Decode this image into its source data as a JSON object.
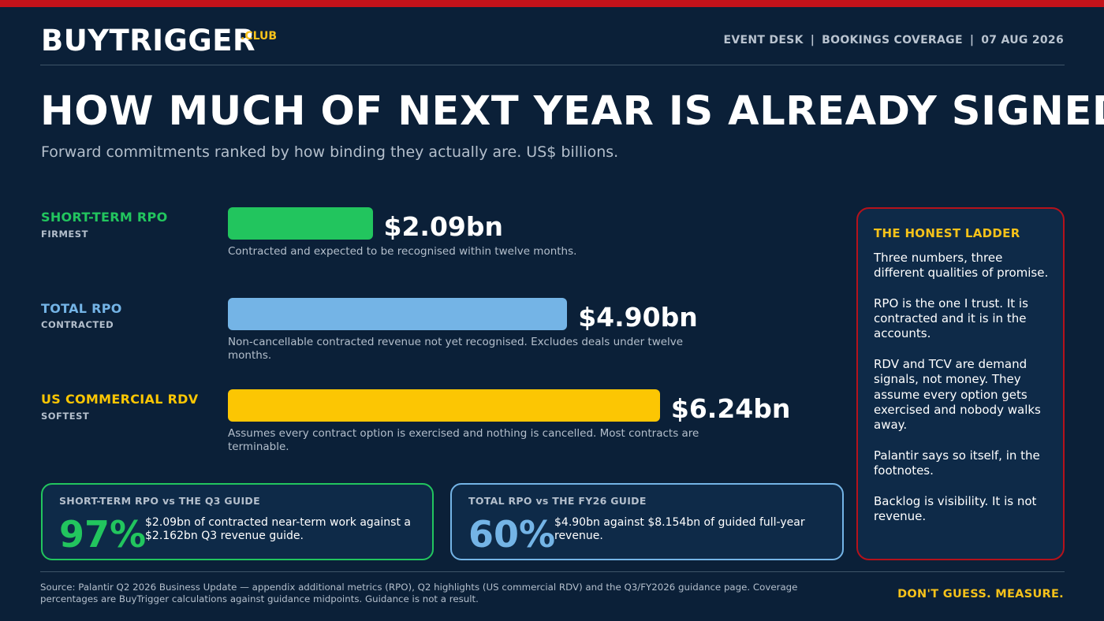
{
  "header": {
    "brand": "BUYTRIGGER",
    "brand_suffix": ".CLUB",
    "meta": [
      "EVENT DESK",
      "BOOKINGS COVERAGE",
      "07 AUG 2026"
    ],
    "meta_separator": "|"
  },
  "headline": "HOW MUCH OF NEXT YEAR IS ALREADY SIGNED?",
  "subhead": "Forward commitments ranked by how binding they actually are. US$ billions.",
  "chart_data": {
    "type": "bar",
    "orientation": "horizontal",
    "unit": "US$ billions",
    "xlim": [
      0,
      7.5
    ],
    "grid": false,
    "categories": [
      "SHORT-TERM RPO",
      "TOTAL RPO",
      "US COMMERCIAL RDV"
    ],
    "tags": [
      "FIRMEST",
      "CONTRACTED",
      "SOFTEST"
    ],
    "values": [
      2.09,
      4.9,
      6.24
    ],
    "value_labels": [
      "$2.09bn",
      "$4.90bn",
      "$6.24bn"
    ],
    "descriptions": [
      "Contracted and expected to be recognised within twelve months.",
      "Non-cancellable contracted revenue not yet recognised. Excludes deals under twelve months.",
      "Assumes every contract option is exercised and nothing is cancelled. Most contracts are terminable."
    ],
    "colors": [
      "#22c55e",
      "#74b4e6",
      "#fcc603"
    ]
  },
  "coverage": [
    {
      "title": "SHORT-TERM RPO vs THE Q3 GUIDE",
      "pct": "97%",
      "text": "$2.09bn of contracted near-term work against a $2.162bn Q3 revenue guide.",
      "color": "#22c55e"
    },
    {
      "title": "TOTAL RPO vs THE FY26 GUIDE",
      "pct": "60%",
      "text": "$4.90bn against $8.154bn of guided full-year revenue.",
      "color": "#74b4e6"
    }
  ],
  "ladder": {
    "title": "THE HONEST LADDER",
    "paragraphs": [
      "Three numbers, three different qualities of promise.",
      "RPO is the one I trust. It is contracted and it is in the accounts.",
      "RDV and TCV are demand signals, not money. They assume every option gets exercised and nobody walks away.",
      "Palantir says so itself, in the footnotes.",
      "Backlog is visibility. It is not revenue."
    ]
  },
  "footer": {
    "source": "Source: Palantir Q2 2026 Business Update — appendix additional metrics (RPO), Q2 highlights (US commercial RDV) and the Q3/FY2026 guidance page. Coverage percentages are BuyTrigger calculations against guidance midpoints. Guidance is not a result.",
    "tagline": "DON'T GUESS. MEASURE."
  },
  "colors": {
    "background": "#0b2038",
    "accent_red": "#c4121a",
    "accent_yellow": "#f7c21a"
  }
}
